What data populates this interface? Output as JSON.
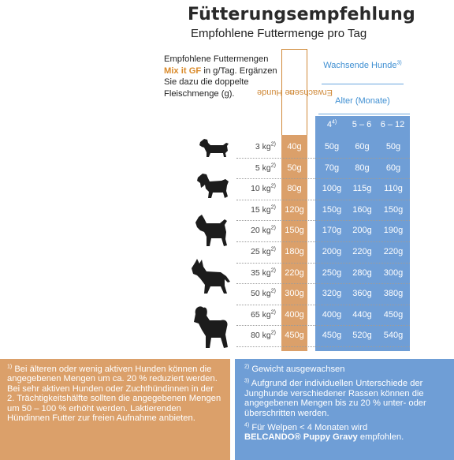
{
  "header": {
    "title": "Fütterungsempfehlung",
    "subtitle": "Empfohlene Futtermenge pro Tag"
  },
  "intro": {
    "part1": "Empfohlene Futtermengen",
    "highlight": "Mix it GF",
    "part2": "in g/Tag. Ergänzen Sie dazu die doppelte Fleischmenge (g)."
  },
  "table": {
    "adult_header": "Erwachsene Hunde",
    "adult_header_note": "1)",
    "growing_header": "Wachsende Hunde",
    "growing_header_note": "3)",
    "age_header": "Alter (Monate)",
    "age_columns": [
      {
        "label": "4",
        "note": "4)"
      },
      {
        "label": "5 – 6",
        "note": ""
      },
      {
        "label": "6 – 12",
        "note": ""
      }
    ],
    "weight_note": "2)",
    "rows": [
      {
        "weight": "3 kg",
        "adult": "40g",
        "g4": "50g",
        "g5_6": "60g",
        "g6_12": "50g"
      },
      {
        "weight": "5 kg",
        "adult": "50g",
        "g4": "70g",
        "g5_6": "80g",
        "g6_12": "60g"
      },
      {
        "weight": "10 kg",
        "adult": "80g",
        "g4": "100g",
        "g5_6": "115g",
        "g6_12": "110g"
      },
      {
        "weight": "15 kg",
        "adult": "120g",
        "g4": "150g",
        "g5_6": "160g",
        "g6_12": "150g"
      },
      {
        "weight": "20 kg",
        "adult": "150g",
        "g4": "170g",
        "g5_6": "200g",
        "g6_12": "190g"
      },
      {
        "weight": "25 kg",
        "adult": "180g",
        "g4": "200g",
        "g5_6": "220g",
        "g6_12": "220g"
      },
      {
        "weight": "35 kg",
        "adult": "220g",
        "g4": "250g",
        "g5_6": "280g",
        "g6_12": "300g"
      },
      {
        "weight": "50 kg",
        "adult": "300g",
        "g4": "320g",
        "g5_6": "360g",
        "g6_12": "380g"
      },
      {
        "weight": "65 kg",
        "adult": "400g",
        "g4": "400g",
        "g5_6": "440g",
        "g6_12": "450g"
      },
      {
        "weight": "80 kg",
        "adult": "450g",
        "g4": "450g",
        "g5_6": "520g",
        "g6_12": "540g"
      }
    ]
  },
  "dog_icons": [
    "dachshund-icon",
    "spaniel-icon",
    "terrier-icon",
    "shepherd-icon",
    "poodle-icon"
  ],
  "footnotes": {
    "n1_marker": "1)",
    "n1": "Bei älteren oder wenig aktiven Hunden können die angegebenen Mengen um ca. 20 % reduziert werden. Bei sehr aktiven Hunden oder Zuchthündinnen in der 2. Trächtigkeitshälfte sollten die angegebenen Mengen um 50 – 100 % erhöht werden. Laktierenden Hündinnen Futter zur freien Aufnahme anbieten.",
    "n2_marker": "2)",
    "n2": "Gewicht ausgewachsen",
    "n3_marker": "3)",
    "n3": "Aufgrund der individuellen Unterschiede der Junghunde verschiedener Rassen können die angegebenen Mengen bis zu 20 % unter- oder überschritten werden.",
    "n4_marker": "4)",
    "n4_part1": "Für Welpen < 4 Monaten wird",
    "n4_brand": "BELCANDO® Puppy Gravy",
    "n4_part2": "empfohlen."
  },
  "colors": {
    "orange": "#dba06a",
    "blue": "#6f9ed6",
    "header_blue": "#3f8fd2",
    "highlight": "#d98a2a"
  }
}
